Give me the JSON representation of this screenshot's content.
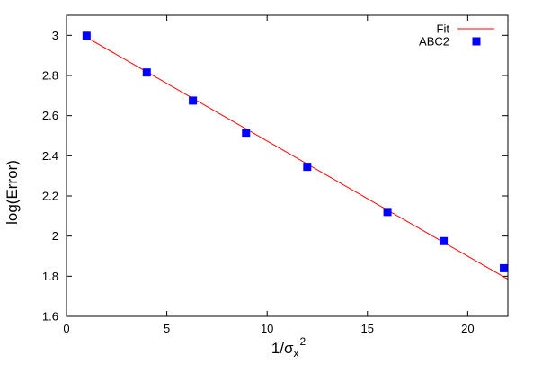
{
  "chart_data": {
    "type": "scatter",
    "xlabel": "1/σx2",
    "xlabel_parts": {
      "base": "1/σ",
      "sub": "x",
      "sup": "2"
    },
    "ylabel": "log(Error)",
    "xlim": [
      0,
      22
    ],
    "ylim": [
      1.6,
      3.1
    ],
    "xticks": [
      0,
      5,
      10,
      15,
      20
    ],
    "yticks": [
      1.6,
      1.8,
      2,
      2.2,
      2.4,
      2.6,
      2.8,
      3
    ],
    "ytick_labels": [
      "1.6",
      "1.8",
      "2",
      "2.2",
      "2.4",
      "2.6",
      "2.8",
      "3"
    ],
    "grid": false,
    "legend_position": "top-right",
    "series": [
      {
        "name": "Fit",
        "kind": "line",
        "color": "#ff0000",
        "x": [
          1,
          22
        ],
        "y": [
          2.99,
          1.785
        ]
      },
      {
        "name": "ABC2",
        "kind": "points",
        "marker": "square",
        "color": "#0000ff",
        "x": [
          1,
          4,
          6.3,
          8.95,
          12,
          16,
          18.8,
          21.8
        ],
        "y": [
          2.998,
          2.815,
          2.675,
          2.515,
          2.345,
          2.12,
          1.975,
          1.84
        ]
      }
    ]
  }
}
